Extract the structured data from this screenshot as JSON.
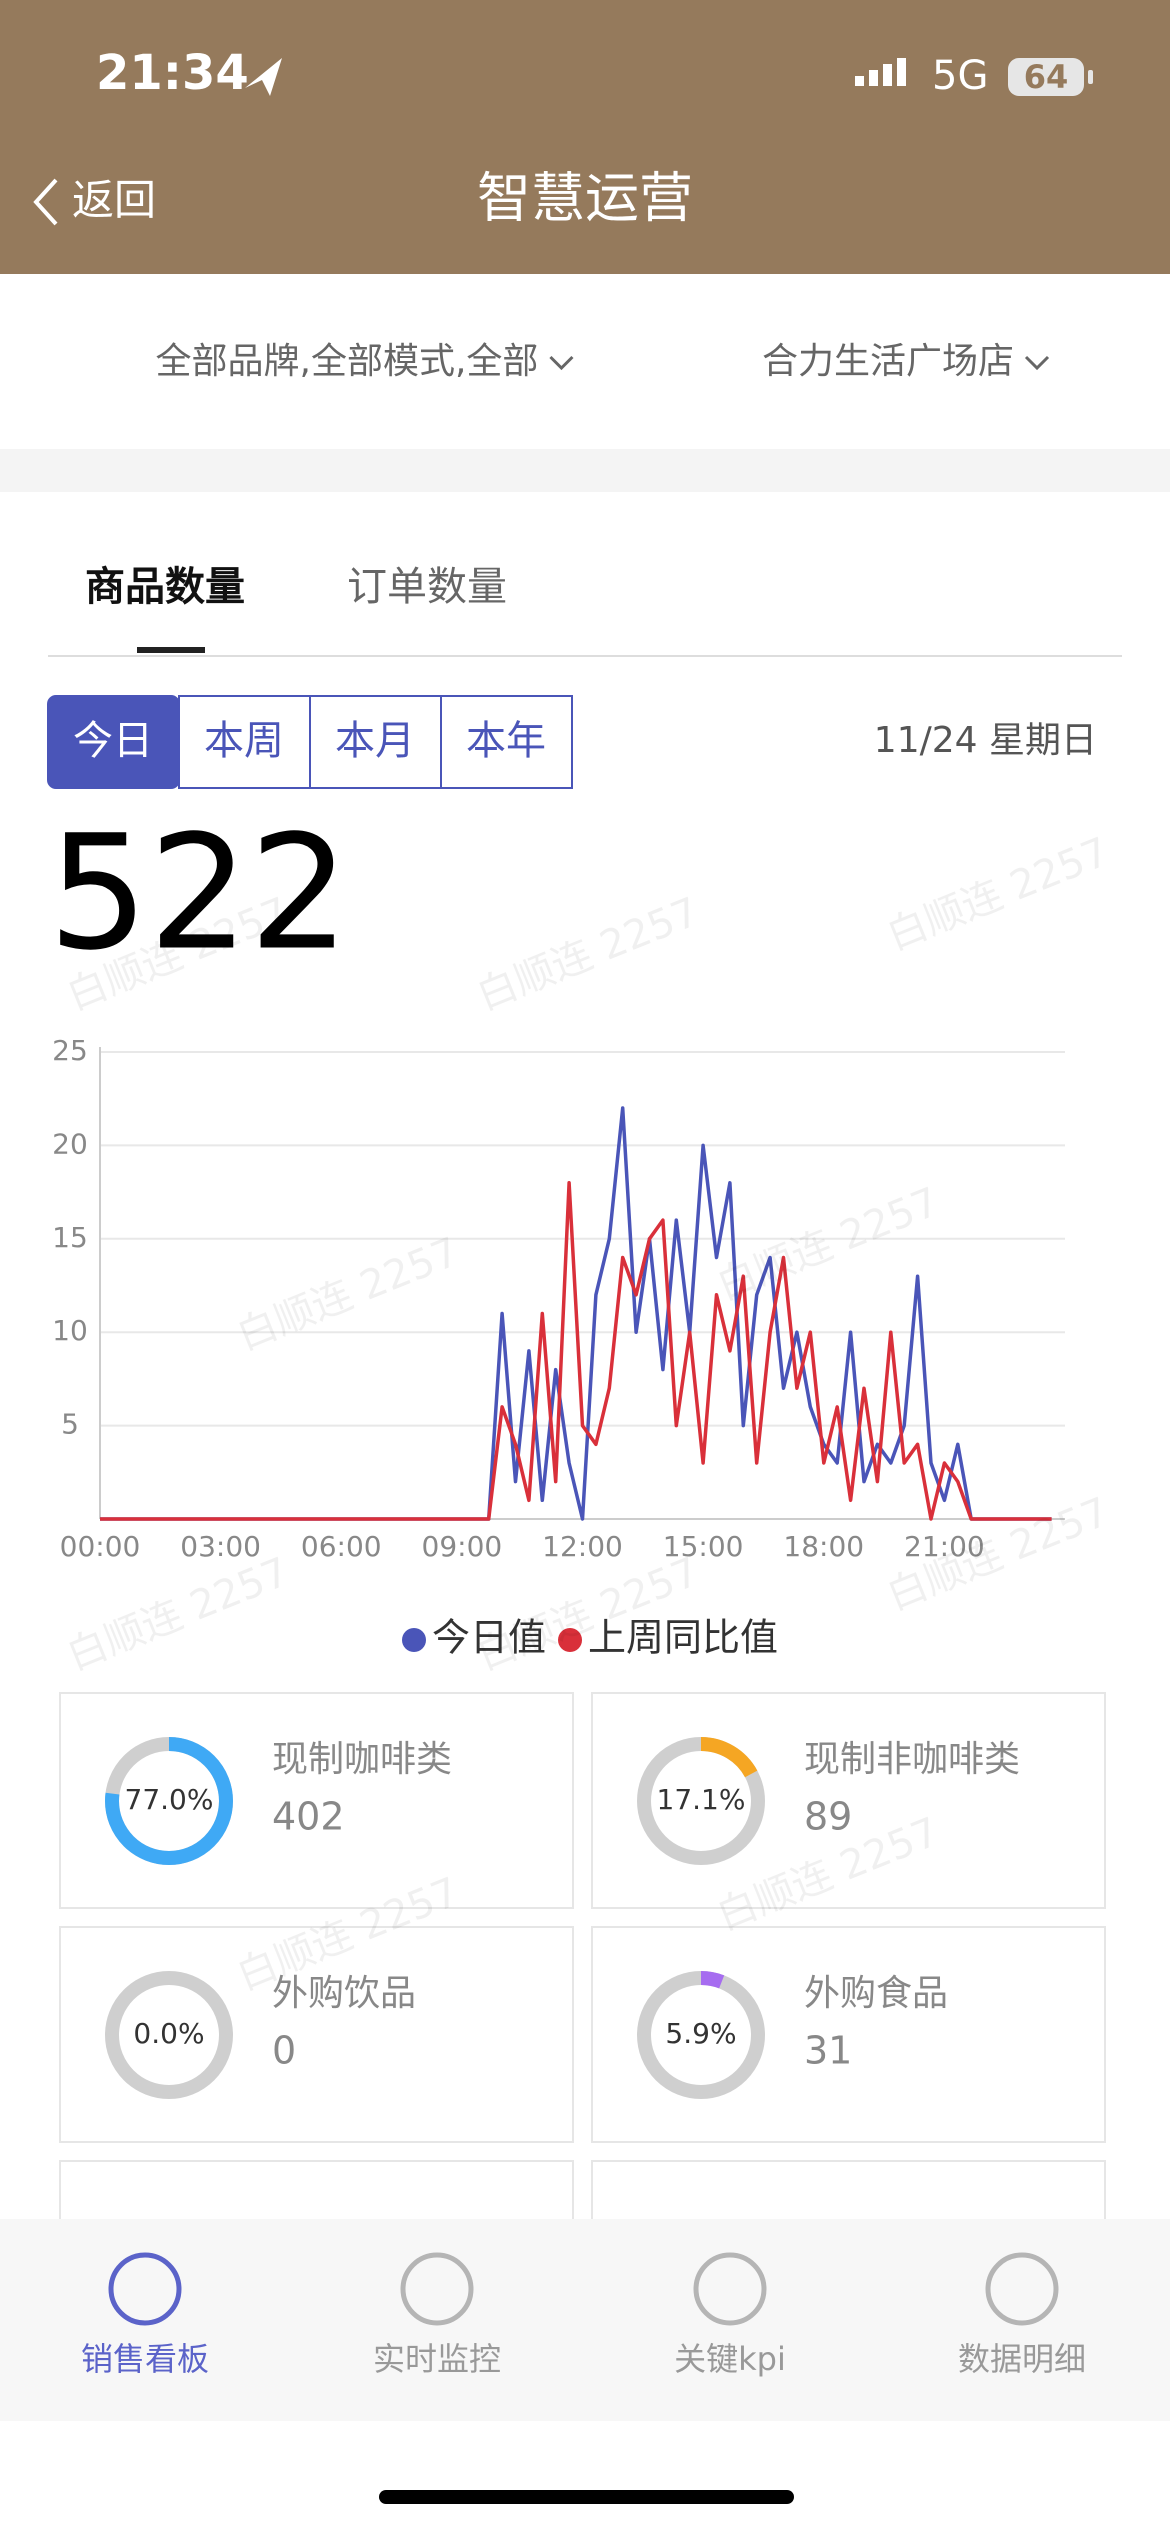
{
  "status_bar": {
    "time": "21:34",
    "network": "5G",
    "battery": 64
  },
  "nav": {
    "back": "返回",
    "title": "智慧运营"
  },
  "filters": [
    "全部品牌,全部模式,全部",
    "合力生活广场店"
  ],
  "tabs": [
    "商品数量",
    "订单数量"
  ],
  "periods": [
    "今日",
    "本周",
    "本月",
    "本年"
  ],
  "date": "11/24 星期日",
  "total": 522,
  "watermark": "白顺连 2257",
  "chart_data": {
    "type": "line",
    "categories": [
      "00:00",
      null,
      null,
      null,
      null,
      null,
      null,
      null,
      null,
      "03:00",
      null,
      null,
      null,
      null,
      null,
      null,
      null,
      null,
      "06:00",
      null,
      null,
      null,
      null,
      null,
      null,
      null,
      null,
      "09:00",
      null,
      null,
      null,
      null,
      null,
      null,
      null,
      null,
      "12:00",
      null,
      null,
      null,
      null,
      null,
      null,
      null,
      null,
      "15:00",
      null,
      null,
      null,
      null,
      null,
      null,
      null,
      null,
      "18:00",
      null,
      null,
      null,
      null,
      null,
      null,
      null,
      null,
      "21:00",
      null,
      null,
      null,
      null,
      null,
      null,
      null,
      null
    ],
    "series": [
      {
        "name": "今日值",
        "color": "#4a55b8",
        "values": [
          0,
          0,
          0,
          0,
          0,
          0,
          0,
          0,
          0,
          0,
          0,
          0,
          0,
          0,
          0,
          0,
          0,
          0,
          0,
          0,
          0,
          0,
          0,
          0,
          0,
          0,
          0,
          0,
          0,
          0,
          11,
          2,
          9,
          1,
          8,
          3,
          0,
          12,
          15,
          22,
          10,
          15,
          8,
          16,
          10,
          20,
          14,
          18,
          5,
          12,
          14,
          7,
          10,
          6,
          4,
          3,
          10,
          2,
          4,
          3,
          5,
          13,
          3,
          1,
          4,
          0,
          0,
          0,
          0,
          0,
          0,
          0
        ]
      },
      {
        "name": "上周同比值",
        "color": "#d9303a",
        "values": [
          0,
          0,
          0,
          0,
          0,
          0,
          0,
          0,
          0,
          0,
          0,
          0,
          0,
          0,
          0,
          0,
          0,
          0,
          0,
          0,
          0,
          0,
          0,
          0,
          0,
          0,
          0,
          0,
          0,
          0,
          6,
          4,
          1,
          11,
          2,
          18,
          5,
          4,
          7,
          14,
          12,
          15,
          16,
          5,
          10,
          3,
          12,
          9,
          13,
          3,
          10,
          14,
          7,
          10,
          3,
          6,
          1,
          7,
          2,
          10,
          3,
          4,
          0,
          3,
          2,
          0,
          0,
          0,
          0,
          0,
          0,
          0
        ]
      }
    ],
    "ylim": [
      0,
      25
    ],
    "yticks": [
      5,
      10,
      15,
      20,
      25
    ],
    "grid": true
  },
  "cards": [
    {
      "label": "现制咖啡类",
      "percent": 77.0,
      "percent_label": "77.0%",
      "count": 402,
      "color": "#3fa9f5"
    },
    {
      "label": "现制非咖啡类",
      "percent": 17.1,
      "percent_label": "17.1%",
      "count": 89,
      "color": "#f5a623"
    },
    {
      "label": "外购饮品",
      "percent": 0.0,
      "percent_label": "0.0%",
      "count": 0,
      "color": "#3fa9f5"
    },
    {
      "label": "外购食品",
      "percent": 5.9,
      "percent_label": "5.9%",
      "count": 31,
      "color": "#a66cf0"
    }
  ],
  "bottom_nav": [
    "销售看板",
    "实时监控",
    "关键kpi",
    "数据明细"
  ]
}
